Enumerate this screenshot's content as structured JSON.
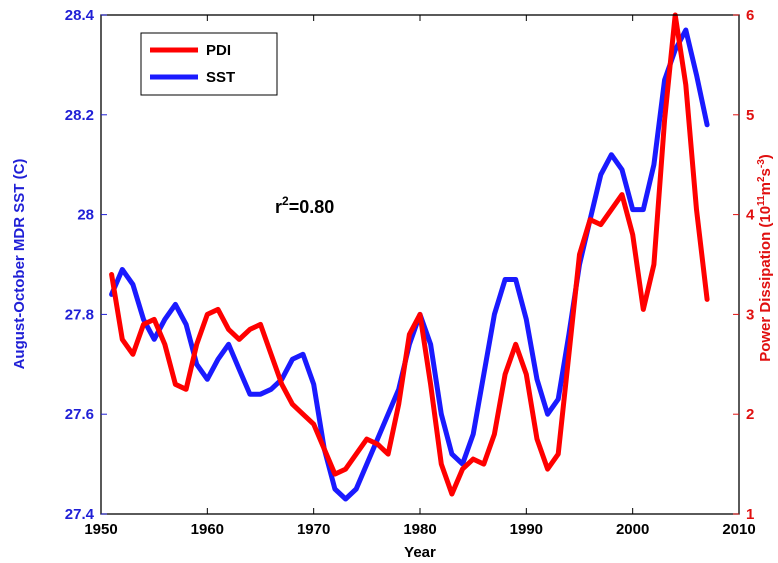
{
  "chart_data": {
    "type": "line",
    "title": "",
    "xlabel": "Year",
    "ylabel_left": "August-October MDR SST (C)",
    "ylabel_right_prefix": "Power Dissipation (10",
    "ylabel_right_sup1": "11",
    "ylabel_right_mid": "m",
    "ylabel_right_sup2": "2",
    "ylabel_right_mid2": "s",
    "ylabel_right_sup3": "-3",
    "ylabel_right_suffix": ")",
    "xlim": [
      1950,
      2010
    ],
    "ylim_left": [
      27.4,
      28.4
    ],
    "ylim_right": [
      1,
      6
    ],
    "x_ticks": [
      "1950",
      "1960",
      "1970",
      "1980",
      "1990",
      "2000",
      "2010"
    ],
    "y_left_ticks": [
      "27.4",
      "27.6",
      "27.8",
      "28",
      "28.2",
      "28.4"
    ],
    "y_right_ticks": [
      "1",
      "2",
      "3",
      "4",
      "5",
      "6"
    ],
    "annotation": {
      "base": "r",
      "sup": "2",
      "rest": "=0.80"
    },
    "legend_position": "top-left",
    "colors": {
      "pdi": "#ff0000",
      "sst": "#1a1aff",
      "left_axis": "#1f1fd6",
      "right_axis": "#e01010"
    },
    "series": [
      {
        "name": "PDI",
        "axis": "right",
        "x": [
          1951,
          1952,
          1953,
          1954,
          1955,
          1956,
          1957,
          1958,
          1959,
          1960,
          1961,
          1962,
          1963,
          1964,
          1965,
          1966,
          1967,
          1968,
          1969,
          1970,
          1971,
          1972,
          1973,
          1974,
          1975,
          1976,
          1977,
          1978,
          1979,
          1980,
          1981,
          1982,
          1983,
          1984,
          1985,
          1986,
          1987,
          1988,
          1989,
          1990,
          1991,
          1992,
          1993,
          1994,
          1995,
          1996,
          1997,
          1998,
          1999,
          2000,
          2001,
          2002,
          2003,
          2004,
          2005,
          2006,
          2007
        ],
        "values": [
          3.4,
          2.75,
          2.6,
          2.9,
          2.95,
          2.7,
          2.3,
          2.25,
          2.7,
          3.0,
          3.05,
          2.85,
          2.75,
          2.85,
          2.9,
          2.6,
          2.3,
          2.1,
          2.0,
          1.9,
          1.65,
          1.4,
          1.45,
          1.6,
          1.75,
          1.7,
          1.6,
          2.1,
          2.8,
          3.0,
          2.3,
          1.5,
          1.2,
          1.45,
          1.55,
          1.5,
          1.8,
          2.4,
          2.7,
          2.4,
          1.75,
          1.45,
          1.6,
          2.6,
          3.6,
          3.95,
          3.9,
          4.05,
          4.2,
          3.8,
          3.05,
          3.5,
          4.95,
          6.0,
          5.3,
          4.05,
          3.15
        ]
      },
      {
        "name": "SST",
        "axis": "left",
        "x": [
          1951,
          1952,
          1953,
          1954,
          1955,
          1956,
          1957,
          1958,
          1959,
          1960,
          1961,
          1962,
          1963,
          1964,
          1965,
          1966,
          1967,
          1968,
          1969,
          1970,
          1971,
          1972,
          1973,
          1974,
          1975,
          1976,
          1977,
          1978,
          1979,
          1980,
          1981,
          1982,
          1983,
          1984,
          1985,
          1986,
          1987,
          1988,
          1989,
          1990,
          1991,
          1992,
          1993,
          1994,
          1995,
          1996,
          1997,
          1998,
          1999,
          2000,
          2001,
          2002,
          2003,
          2004,
          2005,
          2006,
          2007
        ],
        "values": [
          27.84,
          27.89,
          27.86,
          27.79,
          27.75,
          27.79,
          27.82,
          27.78,
          27.7,
          27.67,
          27.71,
          27.74,
          27.69,
          27.64,
          27.64,
          27.65,
          27.67,
          27.71,
          27.72,
          27.66,
          27.53,
          27.45,
          27.43,
          27.45,
          27.5,
          27.55,
          27.6,
          27.65,
          27.74,
          27.8,
          27.74,
          27.6,
          27.52,
          27.5,
          27.56,
          27.68,
          27.8,
          27.87,
          27.87,
          27.79,
          27.67,
          27.6,
          27.63,
          27.76,
          27.9,
          27.99,
          28.08,
          28.12,
          28.09,
          28.01,
          28.01,
          28.1,
          28.27,
          28.33,
          28.37,
          28.28,
          28.18
        ]
      }
    ]
  }
}
